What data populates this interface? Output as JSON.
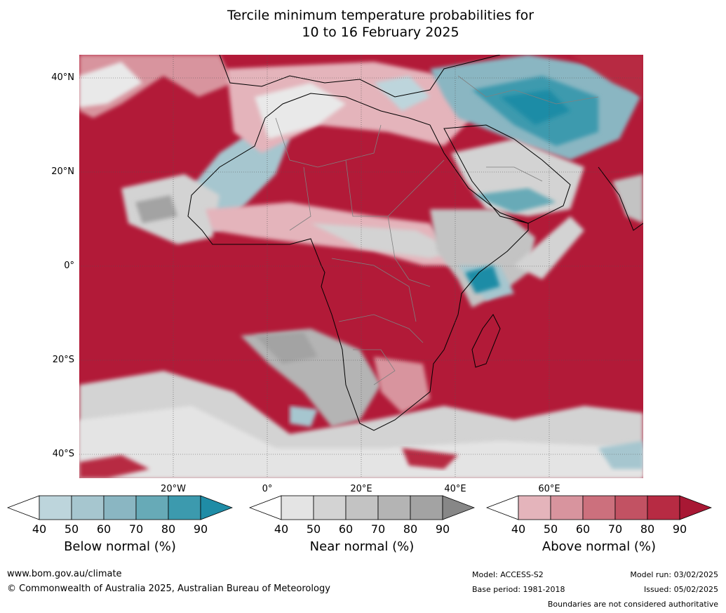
{
  "title_line1": "Tercile minimum temperature probabilities for",
  "title_line2": "10 to 16 February 2025",
  "lat_labels": [
    "40°N",
    "20°N",
    "0°",
    "20°S",
    "40°S"
  ],
  "lon_labels": [
    "20°W",
    "0°",
    "20°E",
    "40°E",
    "60°E"
  ],
  "colorbars": [
    {
      "title": "Below normal (%)",
      "ticks": [
        "40",
        "50",
        "60",
        "70",
        "80",
        "90"
      ],
      "colors": [
        "#bdd5dc",
        "#a6c6cf",
        "#8ab6c2",
        "#67aab7",
        "#3c9aae",
        "#1f8ca6"
      ]
    },
    {
      "title": "Near normal (%)",
      "ticks": [
        "40",
        "50",
        "60",
        "70",
        "80",
        "90"
      ],
      "colors": [
        "#e4e4e4",
        "#d3d3d3",
        "#c3c3c3",
        "#b4b4b4",
        "#a3a3a3",
        "#878787"
      ]
    },
    {
      "title": "Above normal (%)",
      "ticks": [
        "40",
        "50",
        "60",
        "70",
        "80",
        "90"
      ],
      "colors": [
        "#e4b4bb",
        "#d8949e",
        "#cc707d",
        "#c25263",
        "#b72b43",
        "#a81834"
      ]
    }
  ],
  "footer": {
    "website": "www.bom.gov.au/climate",
    "copyright": "© Commonwealth of Australia 2025, Australian Bureau of Meteorology",
    "model": "Model: ACCESS-S2",
    "base_period": "Base period: 1981-2018",
    "model_run": "Model run: 03/02/2025",
    "issued": "Issued: 05/02/2025",
    "disclaimer": "Boundaries are not considered authoritative"
  }
}
